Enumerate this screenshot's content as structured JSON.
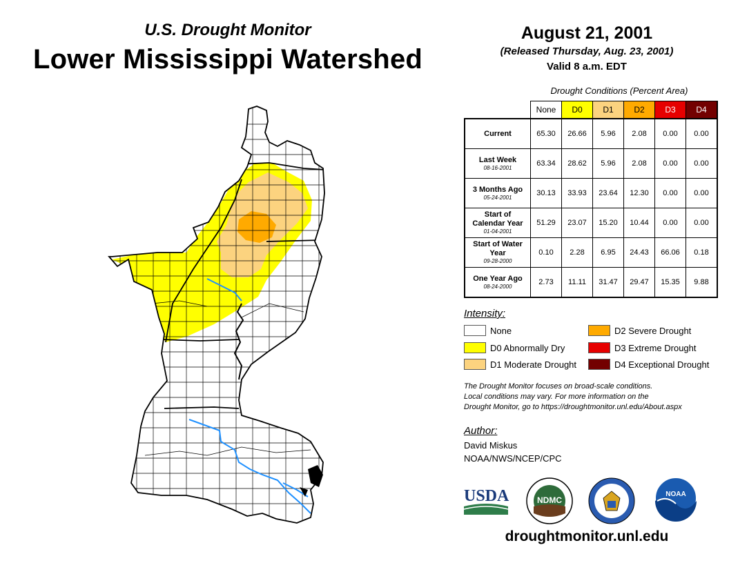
{
  "header": {
    "subtitle": "U.S. Drought Monitor",
    "title": "Lower Mississippi Watershed",
    "date": "August 21, 2001",
    "released": "(Released Thursday, Aug. 23, 2001)",
    "valid": "Valid 8 a.m. EDT"
  },
  "table": {
    "caption": "Drought Conditions (Percent Area)",
    "columns": [
      "None",
      "D0",
      "D1",
      "D2",
      "D3",
      "D4"
    ],
    "column_colors": [
      "#ffffff",
      "#ffff00",
      "#fcd37f",
      "#ffaa00",
      "#e60000",
      "#730000"
    ],
    "rows": [
      {
        "label": "Current",
        "date": "",
        "values": [
          "65.30",
          "26.66",
          "5.96",
          "2.08",
          "0.00",
          "0.00"
        ]
      },
      {
        "label": "Last Week",
        "date": "08-16-2001",
        "values": [
          "63.34",
          "28.62",
          "5.96",
          "2.08",
          "0.00",
          "0.00"
        ]
      },
      {
        "label": "3 Months Ago",
        "date": "05-24-2001",
        "values": [
          "30.13",
          "33.93",
          "23.64",
          "12.30",
          "0.00",
          "0.00"
        ]
      },
      {
        "label": "Start of Calendar Year",
        "date": "01-04-2001",
        "values": [
          "51.29",
          "23.07",
          "15.20",
          "10.44",
          "0.00",
          "0.00"
        ]
      },
      {
        "label": "Start of Water Year",
        "date": "09-28-2000",
        "values": [
          "0.10",
          "2.28",
          "6.95",
          "24.43",
          "66.06",
          "0.18"
        ]
      },
      {
        "label": "One Year Ago",
        "date": "08-24-2000",
        "values": [
          "2.73",
          "11.11",
          "31.47",
          "29.47",
          "15.35",
          "9.88"
        ]
      }
    ]
  },
  "legend": {
    "title": "Intensity:",
    "items": [
      {
        "label": "None",
        "color": "#ffffff"
      },
      {
        "label": "D0 Abnormally Dry",
        "color": "#ffff00"
      },
      {
        "label": "D1 Moderate Drought",
        "color": "#fcd37f"
      },
      {
        "label": "D2 Severe Drought",
        "color": "#ffaa00"
      },
      {
        "label": "D3 Extreme Drought",
        "color": "#e60000"
      },
      {
        "label": "D4 Exceptional Drought",
        "color": "#730000"
      }
    ]
  },
  "note": {
    "line1": "The Drought Monitor focuses on broad-scale conditions.",
    "line2": "Local conditions may vary. For more information on the",
    "line3": "Drought Monitor, go to https://droughtmonitor.unl.edu/About.aspx"
  },
  "author": {
    "label": "Author:",
    "name": "David Miskus",
    "org": "NOAA/NWS/NCEP/CPC"
  },
  "logos": {
    "usda": "USDA",
    "ndmc": "NDMC",
    "noaa": "NOAA"
  },
  "website": "droughtmonitor.unl.edu",
  "map": {
    "river_color": "#1e90ff",
    "county_line_color": "#000000"
  }
}
